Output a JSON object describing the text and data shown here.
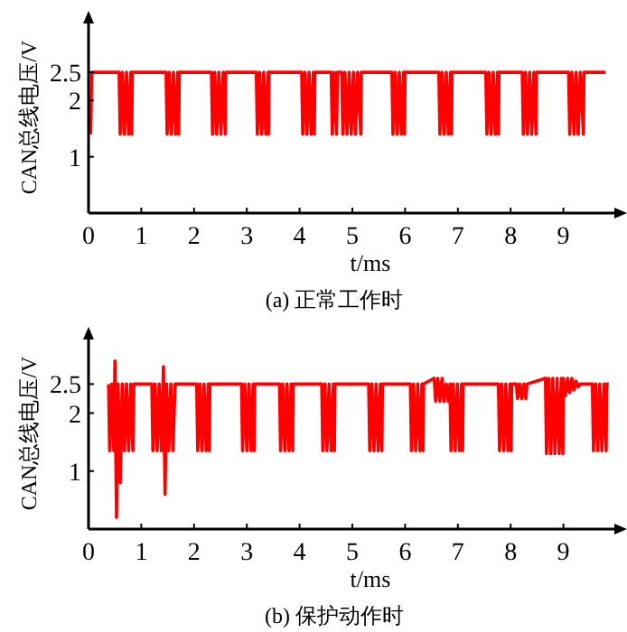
{
  "chart_data": [
    {
      "type": "line",
      "title": "(a) 正常工作时",
      "xlabel": "t/ms",
      "ylabel": "CAN总线电压/V",
      "color": "#ff0000",
      "xlim": [
        0,
        10
      ],
      "xticks": [
        0,
        1,
        2,
        3,
        4,
        5,
        6,
        7,
        8,
        9
      ],
      "ylim": [
        0,
        3.4
      ],
      "yticks": [
        1,
        2,
        2.5
      ],
      "x": [
        0.04,
        0.06,
        0.58,
        0.6,
        0.64,
        0.68,
        0.72,
        0.76,
        0.8,
        0.82,
        0.83,
        1.47,
        1.49,
        1.53,
        1.57,
        1.61,
        1.65,
        1.69,
        1.71,
        1.72,
        2.33,
        2.35,
        2.39,
        2.43,
        2.47,
        2.51,
        2.55,
        2.59,
        2.6,
        3.18,
        3.2,
        3.24,
        3.28,
        3.32,
        3.36,
        3.4,
        3.41,
        3.42,
        4.04,
        4.06,
        4.1,
        4.14,
        4.18,
        4.22,
        4.26,
        4.28,
        4.29,
        4.6,
        4.62,
        4.66,
        4.7,
        4.72,
        4.8,
        4.82,
        4.86,
        4.9,
        4.94,
        4.98,
        5.02,
        5.06,
        5.1,
        5.16,
        5.17,
        5.75,
        5.77,
        5.81,
        5.85,
        5.89,
        5.93,
        5.97,
        5.99,
        6.0,
        6.64,
        6.66,
        6.7,
        6.74,
        6.78,
        6.82,
        6.86,
        6.88,
        6.89,
        7.53,
        7.55,
        7.59,
        7.63,
        7.67,
        7.71,
        7.75,
        7.77,
        7.78,
        8.22,
        8.24,
        8.28,
        8.32,
        8.36,
        8.4,
        8.44,
        8.48,
        8.49,
        9.1,
        9.12,
        9.16,
        9.2,
        9.24,
        9.28,
        9.32,
        9.38,
        9.39,
        9.8
      ],
      "values": [
        1.4,
        2.5,
        2.5,
        1.4,
        2.5,
        1.4,
        2.5,
        1.4,
        2.5,
        1.4,
        2.5,
        2.5,
        1.4,
        2.5,
        1.4,
        2.5,
        1.4,
        2.5,
        1.4,
        2.5,
        2.5,
        1.4,
        2.5,
        1.4,
        2.5,
        1.4,
        2.5,
        1.4,
        2.5,
        2.5,
        1.4,
        2.5,
        1.4,
        2.5,
        1.4,
        2.5,
        1.4,
        2.5,
        2.5,
        1.4,
        2.5,
        1.4,
        2.5,
        1.4,
        2.5,
        1.4,
        2.5,
        2.5,
        1.4,
        2.5,
        1.4,
        2.5,
        2.5,
        1.4,
        2.5,
        1.4,
        2.5,
        1.4,
        2.5,
        1.4,
        2.5,
        1.4,
        2.5,
        2.5,
        1.4,
        2.5,
        1.4,
        2.5,
        1.4,
        2.5,
        1.4,
        2.5,
        2.5,
        1.4,
        2.5,
        1.4,
        2.5,
        1.4,
        2.5,
        1.4,
        2.5,
        2.5,
        1.4,
        2.5,
        1.4,
        2.5,
        1.4,
        2.5,
        1.4,
        2.5,
        2.5,
        1.4,
        2.5,
        1.4,
        2.5,
        1.4,
        2.5,
        1.4,
        2.5,
        2.5,
        1.4,
        2.5,
        1.4,
        2.5,
        1.4,
        2.5,
        1.4,
        2.5,
        2.5
      ]
    },
    {
      "type": "line",
      "title": "(b) 保护动作时",
      "xlabel": "t/ms",
      "ylabel": "CAN总线电压/V",
      "color": "#ff0000",
      "xlim": [
        0,
        10
      ],
      "xticks": [
        0,
        1,
        2,
        3,
        4,
        5,
        6,
        7,
        8,
        9
      ],
      "ylim": [
        0,
        3.3
      ],
      "yticks": [
        1,
        2,
        2.5
      ],
      "x": [
        0.38,
        0.4,
        0.44,
        0.48,
        0.5,
        0.53,
        0.56,
        0.6,
        0.64,
        0.68,
        0.72,
        0.76,
        0.8,
        0.84,
        0.86,
        1.2,
        1.22,
        1.26,
        1.3,
        1.34,
        1.38,
        1.42,
        1.45,
        1.48,
        1.52,
        1.56,
        1.6,
        1.64,
        2.05,
        2.07,
        2.11,
        2.15,
        2.19,
        2.23,
        2.27,
        2.29,
        2.3,
        2.9,
        2.92,
        2.96,
        3.0,
        3.04,
        3.08,
        3.12,
        3.14,
        3.15,
        3.62,
        3.64,
        3.68,
        3.72,
        3.76,
        3.8,
        3.84,
        3.87,
        3.88,
        4.42,
        4.44,
        4.48,
        4.52,
        4.56,
        4.6,
        4.64,
        4.66,
        4.67,
        5.31,
        5.33,
        5.37,
        5.41,
        5.45,
        5.49,
        5.53,
        5.56,
        5.57,
        6.1,
        6.12,
        6.16,
        6.2,
        6.24,
        6.28,
        6.32,
        6.34,
        6.35,
        6.55,
        6.58,
        6.62,
        6.66,
        6.7,
        6.74,
        6.78,
        6.82,
        6.85,
        6.87,
        6.91,
        6.95,
        6.99,
        7.03,
        7.07,
        7.09,
        7.1,
        7.77,
        7.79,
        7.83,
        7.87,
        7.91,
        7.95,
        7.99,
        8.01,
        8.02,
        8.11,
        8.13,
        8.17,
        8.21,
        8.25,
        8.29,
        8.31,
        8.66,
        8.68,
        8.72,
        8.76,
        8.8,
        8.84,
        8.88,
        8.92,
        8.96,
        8.99,
        9.0,
        9.04,
        9.08,
        9.12,
        9.16,
        9.2,
        9.24,
        9.28,
        9.32,
        9.55,
        9.57,
        9.61,
        9.65,
        9.69,
        9.73,
        9.77,
        9.81,
        9.82,
        9.86
      ],
      "values": [
        2.5,
        1.35,
        2.5,
        1.35,
        2.9,
        0.2,
        2.5,
        0.8,
        2.5,
        1.35,
        2.5,
        1.35,
        2.5,
        1.35,
        2.5,
        2.5,
        1.35,
        2.5,
        1.35,
        2.5,
        1.35,
        2.8,
        0.6,
        2.5,
        1.35,
        2.5,
        1.35,
        2.5,
        2.5,
        1.35,
        2.5,
        1.35,
        2.5,
        1.35,
        2.5,
        1.35,
        2.5,
        2.5,
        1.35,
        2.5,
        1.35,
        2.5,
        1.35,
        2.5,
        1.35,
        2.5,
        2.5,
        1.35,
        2.5,
        1.35,
        2.5,
        1.35,
        2.5,
        1.35,
        2.5,
        2.5,
        1.35,
        2.5,
        1.35,
        2.5,
        1.35,
        2.5,
        1.35,
        2.5,
        2.5,
        1.35,
        2.5,
        1.35,
        2.5,
        1.35,
        2.5,
        1.35,
        2.5,
        2.5,
        1.35,
        2.5,
        1.35,
        2.5,
        1.35,
        2.5,
        1.35,
        2.5,
        2.6,
        2.2,
        2.6,
        2.2,
        2.6,
        2.2,
        2.5,
        2.2,
        2.5,
        1.35,
        2.5,
        1.35,
        2.5,
        1.35,
        2.5,
        1.35,
        2.5,
        2.5,
        1.35,
        2.5,
        1.35,
        2.5,
        1.35,
        2.5,
        1.35,
        2.5,
        2.5,
        2.25,
        2.5,
        2.25,
        2.5,
        2.25,
        2.5,
        2.6,
        1.3,
        2.6,
        1.3,
        2.6,
        1.3,
        2.6,
        1.3,
        2.6,
        1.3,
        2.6,
        2.3,
        2.6,
        2.35,
        2.6,
        2.4,
        2.55,
        2.45,
        2.5,
        2.5,
        1.35,
        2.5,
        1.35,
        2.5,
        1.35,
        2.5,
        1.35,
        2.5,
        2.5
      ]
    }
  ]
}
